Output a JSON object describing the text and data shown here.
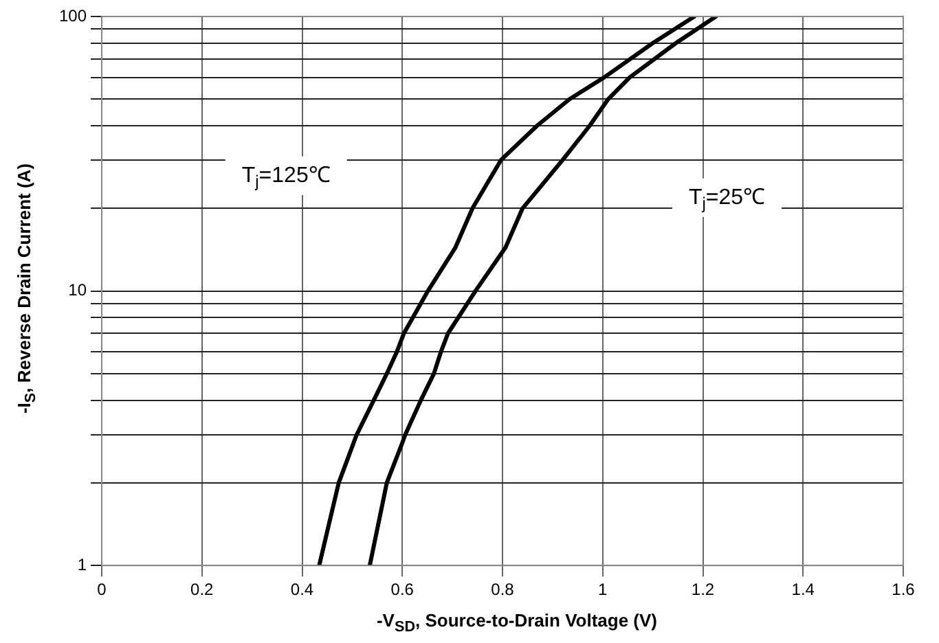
{
  "chart_data": {
    "type": "line",
    "xlabel": "-V$_{SD}$, Source-to-Drain Voltage (V)",
    "ylabel": "-I$_{S}$, Reverse Drain Current (A)",
    "series": [
      {
        "color": "#000000",
        "x": [
          0.434,
          0.473,
          0.509,
          0.543,
          0.569,
          0.589,
          0.603,
          0.651,
          0.706,
          0.74,
          0.797,
          0.869,
          0.934,
          1.003,
          1.1,
          1.183
        ],
        "values": [
          1,
          2,
          3,
          4,
          5,
          6,
          7,
          10,
          14.4,
          20,
          30,
          40,
          50,
          60,
          80,
          100
        ]
      },
      {
        "color": "#000000",
        "x": [
          0.535,
          0.569,
          0.6,
          0.606,
          0.637,
          0.663,
          0.677,
          0.691,
          0.746,
          0.806,
          0.84,
          0.92,
          0.974,
          1.011,
          1.054,
          1.146,
          1.226
        ],
        "values": [
          1,
          2,
          2.8,
          3,
          4,
          5,
          6,
          7,
          10,
          14.4,
          20,
          30,
          40,
          50,
          60,
          80,
          100
        ]
      }
    ],
    "xlim": [
      0,
      1.6
    ],
    "xticks": [
      0,
      0.2,
      0.4,
      0.6,
      0.8,
      1,
      1.2,
      1.4,
      1.6
    ],
    "ylim": [
      1,
      100
    ],
    "yticks": [
      1,
      {
        "value": 2,
        "label": null
      },
      {
        "value": 3,
        "label": null
      },
      {
        "value": 4,
        "label": null
      },
      {
        "value": 5,
        "label": null
      },
      {
        "value": 6,
        "label": null
      },
      {
        "value": 7,
        "label": null
      },
      {
        "value": 8,
        "label": null
      },
      {
        "value": 9,
        "label": null
      },
      10,
      {
        "value": 20,
        "label": null
      },
      {
        "value": 30,
        "label": null
      },
      {
        "value": 40,
        "label": null
      },
      {
        "value": 50,
        "label": null
      },
      {
        "value": 60,
        "label": null
      },
      {
        "value": 70,
        "label": null
      },
      {
        "value": 80,
        "label": null
      },
      {
        "value": 90,
        "label": null
      },
      100
    ],
    "log": "y",
    "grid": true,
    "legend": false,
    "marker": "none",
    "line_style": "solid",
    "annotations": [
      "T$_{j}$=125℃",
      "T$_{j}$=25℃"
    ]
  }
}
